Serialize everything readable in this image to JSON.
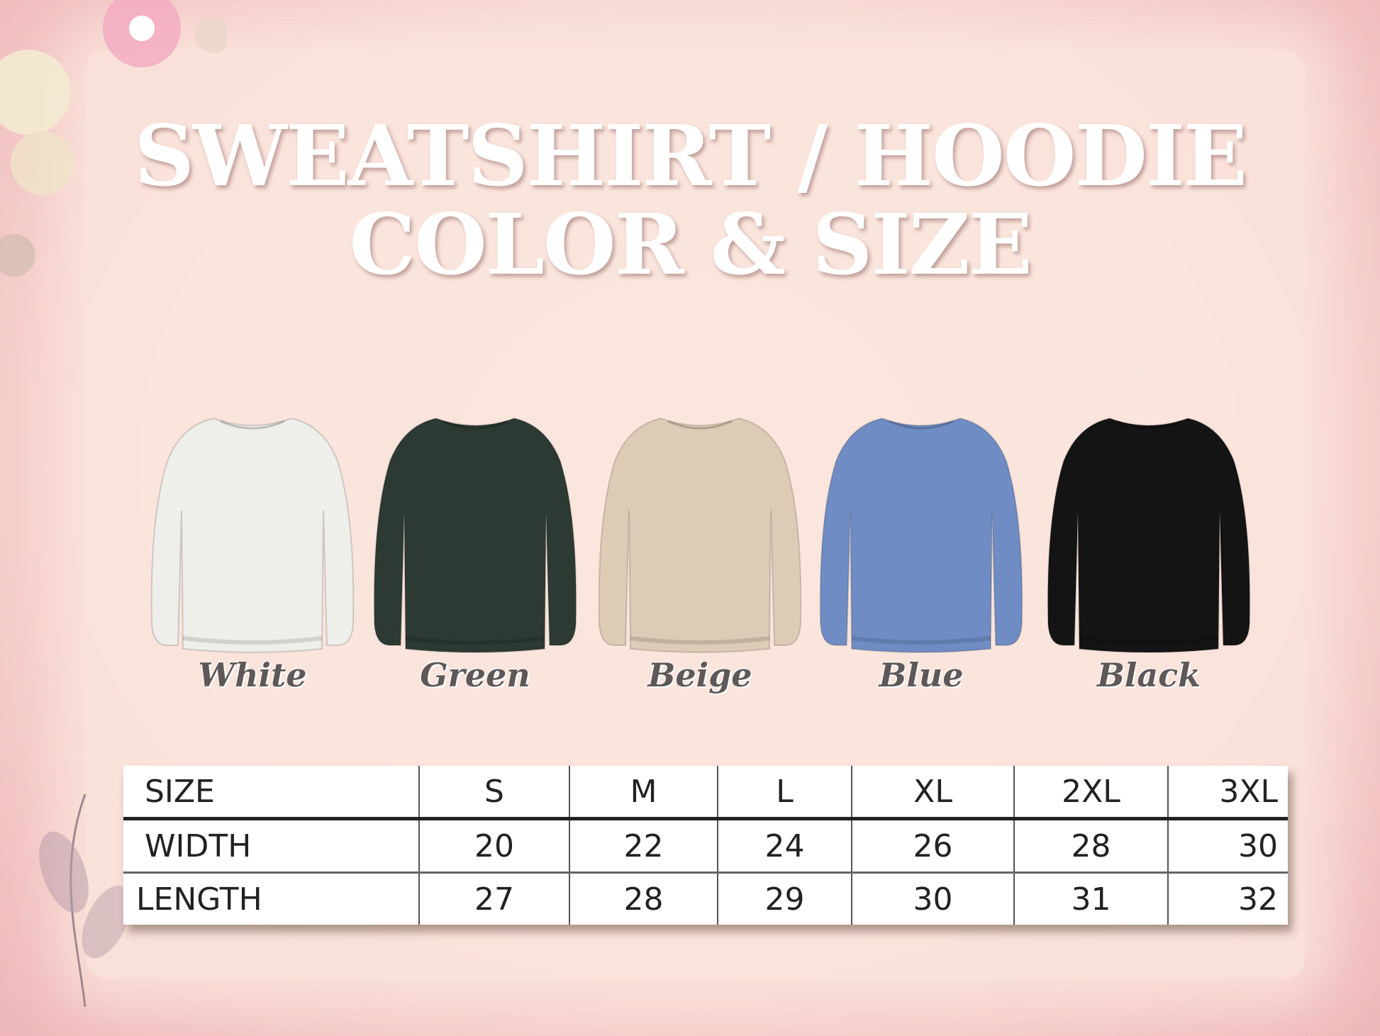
{
  "title": {
    "line1": "SWEATSHIRT / HOODIE",
    "line2": "COLOR & SIZE"
  },
  "colors": [
    {
      "label": "White",
      "hex": "#eeeeea"
    },
    {
      "label": "Green",
      "hex": "#2c3a33"
    },
    {
      "label": "Beige",
      "hex": "#dccbb5"
    },
    {
      "label": "Blue",
      "hex": "#6f8cc4"
    },
    {
      "label": "Black",
      "hex": "#141414"
    }
  ],
  "table": {
    "header": [
      "SIZE",
      "S",
      "M",
      "L",
      "XL",
      "2XL",
      "3XL"
    ],
    "rows": [
      [
        "WIDTH",
        "20",
        "22",
        "24",
        "26",
        "28",
        "30"
      ],
      [
        "LENGTH",
        "27",
        "28",
        "29",
        "30",
        "31",
        "32"
      ]
    ]
  }
}
